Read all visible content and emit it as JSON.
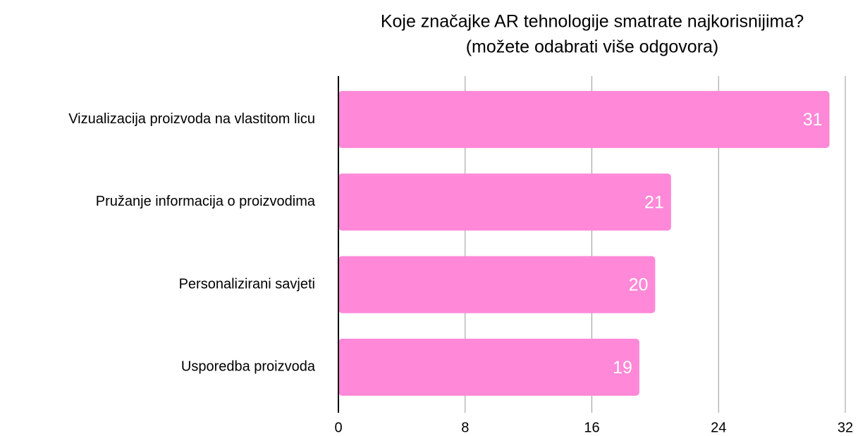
{
  "chart_data": {
    "type": "bar",
    "orientation": "horizontal",
    "title": [
      "Koje značajke AR tehnologije smatrate najkorisnijima?",
      "(možete odabrati više odgovora)"
    ],
    "categories": [
      "Vizualizacija proizvoda na vlastitom licu",
      "Pružanje informacija o proizvodima",
      "Personalizirani savjeti",
      "Usporedba proizvoda"
    ],
    "values": [
      31,
      21,
      20,
      19
    ],
    "color": "#ff88d8",
    "xlim": [
      0,
      32
    ],
    "xticks": [
      0,
      8,
      16,
      24,
      32
    ],
    "grid": true
  }
}
